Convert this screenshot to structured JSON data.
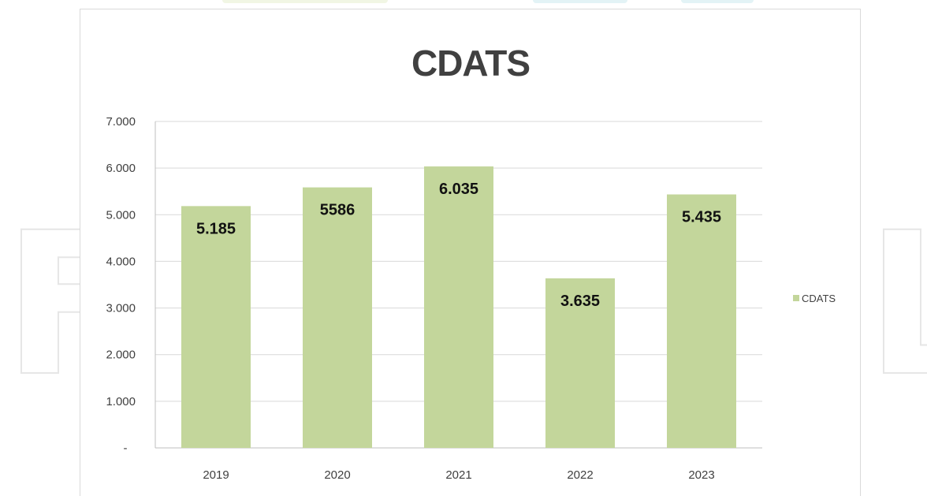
{
  "watermark": {
    "left_letter": "F",
    "right_letter": "L"
  },
  "chart_data": {
    "type": "bar",
    "title": "CDATS",
    "categories": [
      "2019",
      "2020",
      "2021",
      "2022",
      "2023"
    ],
    "series": [
      {
        "name": "CDATS",
        "values": [
          5185,
          5586,
          6035,
          3635,
          5435
        ],
        "labels": [
          "5.185",
          "5586",
          "6.035",
          "3.635",
          "5.435"
        ],
        "color": "#c3d69b"
      }
    ],
    "ylim": [
      0,
      7000
    ],
    "yticks": [
      0,
      1000,
      2000,
      3000,
      4000,
      5000,
      6000,
      7000
    ],
    "ytick_labels": [
      "-",
      "1.000",
      "2.000",
      "3.000",
      "4.000",
      "5.000",
      "6.000",
      "7.000"
    ],
    "xlabel": "",
    "ylabel": "",
    "grid": true,
    "gridline_color": "#d9d9d9",
    "legend_position": "right"
  }
}
